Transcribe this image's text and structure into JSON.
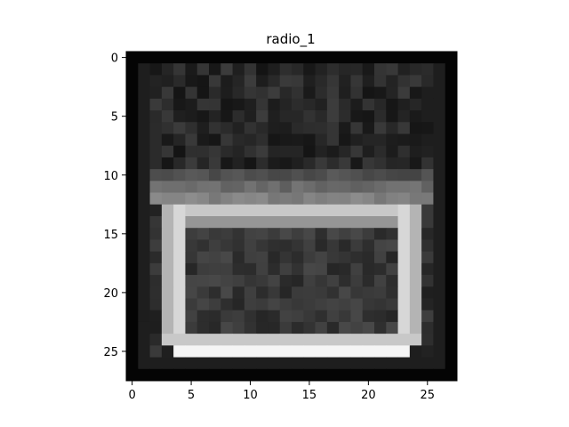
{
  "chart_data": {
    "type": "heatmap",
    "title": "radio_1",
    "colormap": "gray",
    "rows": 28,
    "cols": 28,
    "xlim": [
      -0.5,
      27.5
    ],
    "ylim": [
      27.5,
      -0.5
    ],
    "xticks": [
      0,
      5,
      10,
      15,
      20,
      25
    ],
    "yticks": [
      0,
      5,
      10,
      15,
      20,
      25
    ],
    "grid": false,
    "value_range": [
      0,
      255
    ]
  }
}
